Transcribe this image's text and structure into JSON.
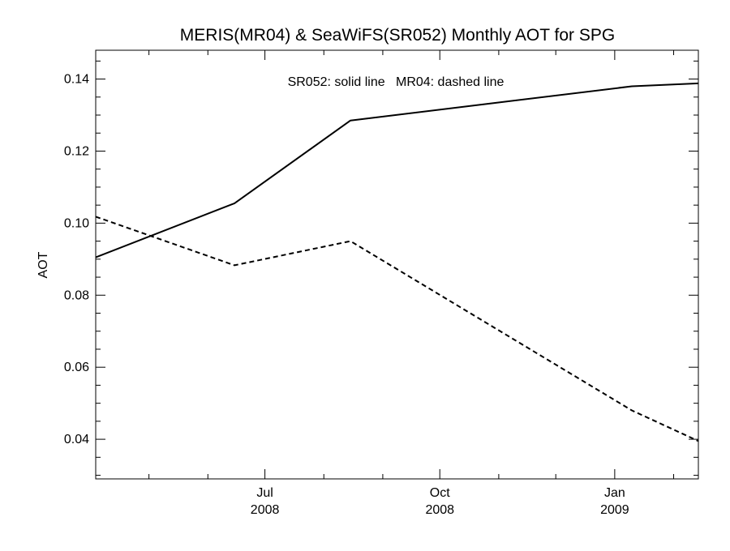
{
  "chart_data": {
    "type": "line",
    "title": "MERIS(MR04) & SeaWiFS(SR052) Monthly AOT for SPG",
    "xlabel": "",
    "ylabel": "AOT",
    "annotation": "SR052: solid line   MR04: dashed line",
    "xlim": [
      "2008-04-03",
      "2009-02-14"
    ],
    "ylim": [
      0.029,
      0.148
    ],
    "y_ticks": [
      0.04,
      0.06,
      0.08,
      0.1,
      0.12,
      0.14
    ],
    "y_tick_labels": [
      "0.04",
      "0.06",
      "0.08",
      "0.10",
      "0.12",
      "0.14"
    ],
    "x_ticks": [
      {
        "date": "2008-07-01",
        "month": "Jul",
        "year": "2008"
      },
      {
        "date": "2008-10-01",
        "month": "Oct",
        "year": "2008"
      },
      {
        "date": "2009-01-01",
        "month": "Jan",
        "year": "2009"
      }
    ],
    "x_minor_ticks": [
      "2008-05-01",
      "2008-06-01",
      "2008-08-01",
      "2008-09-01",
      "2008-11-01",
      "2008-12-01",
      "2009-02-01"
    ],
    "grid": false,
    "series": [
      {
        "name": "SR052",
        "style": "solid",
        "color": "#000000",
        "points": [
          {
            "x": "2008-04-03",
            "y": 0.0905
          },
          {
            "x": "2008-06-15",
            "y": 0.1055
          },
          {
            "x": "2008-08-15",
            "y": 0.1285
          },
          {
            "x": "2009-01-10",
            "y": 0.138
          },
          {
            "x": "2009-02-14",
            "y": 0.1388
          }
        ]
      },
      {
        "name": "MR04",
        "style": "dashed",
        "color": "#000000",
        "points": [
          {
            "x": "2008-04-03",
            "y": 0.1018
          },
          {
            "x": "2008-06-15",
            "y": 0.0883
          },
          {
            "x": "2008-08-15",
            "y": 0.095
          },
          {
            "x": "2009-01-10",
            "y": 0.048
          },
          {
            "x": "2009-02-14",
            "y": 0.0395
          }
        ]
      }
    ]
  }
}
